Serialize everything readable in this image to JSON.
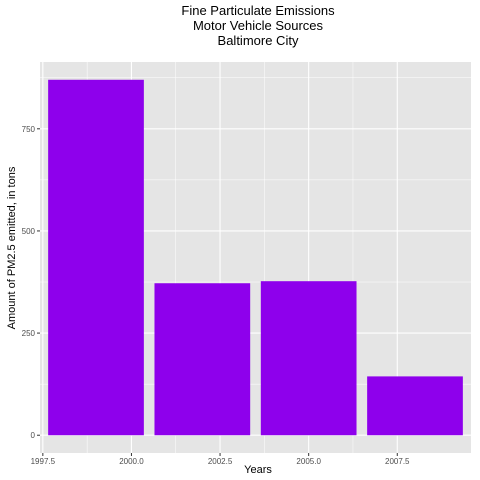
{
  "chart_data": {
    "type": "bar",
    "title": [
      "Fine Particulate Emissions",
      "Motor Vehicle Sources",
      "Baltimore City"
    ],
    "xlabel": "Years",
    "ylabel": "Amount of PM2.5 emitted, in tons",
    "x": [
      1999,
      2002,
      2005,
      2008
    ],
    "values": [
      870,
      372,
      377,
      144
    ],
    "bar_width": 2.7,
    "xlim": [
      1997.42,
      2009.58
    ],
    "ylim": [
      -43.5,
      913.5
    ],
    "xticks": [
      1997.5,
      2000.0,
      2002.5,
      2005.0,
      2007.5
    ],
    "xtick_labels": [
      "1997.5",
      "2000.0",
      "2002.5",
      "2005.0",
      "2007.5"
    ],
    "yticks": [
      0,
      250,
      500,
      750
    ],
    "ytick_labels": [
      "0",
      "250",
      "500",
      "750"
    ],
    "grid": true,
    "bar_color": "#8e00ec",
    "panel_color": "#e5e5e5",
    "gridline_color": "#ffffff"
  }
}
